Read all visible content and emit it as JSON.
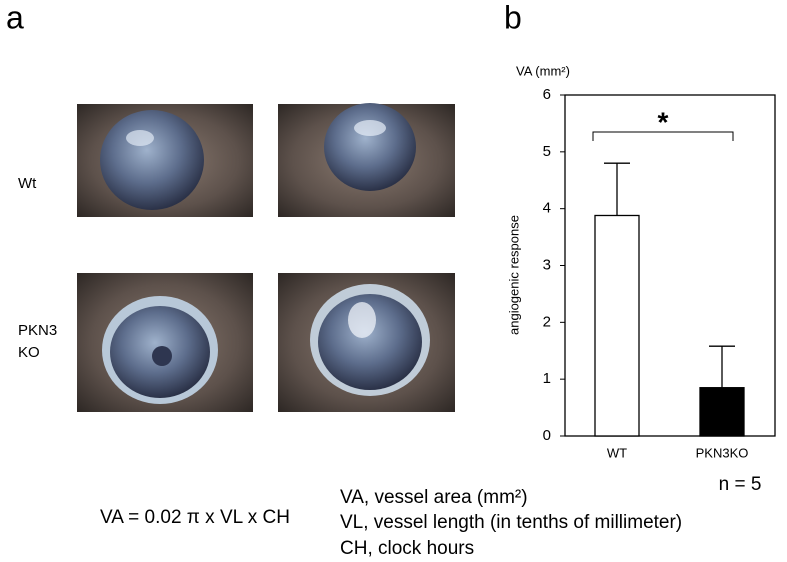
{
  "panel_labels": [
    "a",
    "b"
  ],
  "row_labels": [
    [
      "Wt"
    ],
    [
      "PKN3",
      "KO"
    ]
  ],
  "formula": "VA = 0.02 π x VL x CH",
  "definitions": [
    "VA, vessel area (mm²)",
    "VL, vessel length (in tenths of millimeter)",
    "CH, clock hours"
  ],
  "chart_data": {
    "type": "bar",
    "y_axis_title": "VA (mm²)",
    "y_label": "angiogenic response",
    "categories": [
      "WT",
      "PKN3KO"
    ],
    "values": [
      3.88,
      0.85
    ],
    "errors": [
      0.92,
      0.73
    ],
    "colors": [
      "#ffffff",
      "#000000"
    ],
    "ylim": [
      0,
      6
    ],
    "yticks": [
      0,
      1,
      2,
      3,
      4,
      5,
      6
    ],
    "significance": "*",
    "note": "n = 5"
  }
}
